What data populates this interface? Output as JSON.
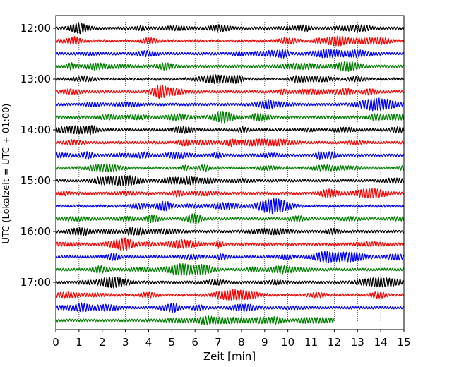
{
  "chart_data": {
    "type": "line",
    "xlabel": "Zeit  [min]",
    "ylabel": "UTC (Lokalzeit = UTC + 01:00)",
    "xlim": [
      0,
      15
    ],
    "x_ticks": [
      "0",
      "1",
      "2",
      "3",
      "4",
      "5",
      "6",
      "7",
      "8",
      "9",
      "10",
      "11",
      "12",
      "13",
      "14",
      "15"
    ],
    "y_ticks": [
      "12:00",
      "13:00",
      "14:00",
      "15:00",
      "16:00",
      "17:00"
    ],
    "grid": "vertical dotted",
    "trace_colors": [
      "#000000",
      "#ff0000",
      "#0000ff",
      "#008000"
    ],
    "traces": [
      {
        "start": "12:00",
        "end_min": 15,
        "color": "#000000"
      },
      {
        "start": "12:15",
        "end_min": 15,
        "color": "#ff0000"
      },
      {
        "start": "12:30",
        "end_min": 15,
        "color": "#0000ff"
      },
      {
        "start": "12:45",
        "end_min": 15,
        "color": "#008000"
      },
      {
        "start": "13:00",
        "end_min": 15,
        "color": "#000000"
      },
      {
        "start": "13:15",
        "end_min": 15,
        "color": "#ff0000"
      },
      {
        "start": "13:30",
        "end_min": 15,
        "color": "#0000ff"
      },
      {
        "start": "13:45",
        "end_min": 15,
        "color": "#008000"
      },
      {
        "start": "14:00",
        "end_min": 15,
        "color": "#000000"
      },
      {
        "start": "14:15",
        "end_min": 15,
        "color": "#ff0000"
      },
      {
        "start": "14:30",
        "end_min": 15,
        "color": "#0000ff"
      },
      {
        "start": "14:45",
        "end_min": 15,
        "color": "#008000"
      },
      {
        "start": "15:00",
        "end_min": 15,
        "color": "#000000"
      },
      {
        "start": "15:15",
        "end_min": 15,
        "color": "#ff0000"
      },
      {
        "start": "15:30",
        "end_min": 15,
        "color": "#0000ff"
      },
      {
        "start": "15:45",
        "end_min": 15,
        "color": "#008000"
      },
      {
        "start": "16:00",
        "end_min": 15,
        "color": "#000000"
      },
      {
        "start": "16:15",
        "end_min": 15,
        "color": "#ff0000"
      },
      {
        "start": "16:30",
        "end_min": 15,
        "color": "#0000ff"
      },
      {
        "start": "16:45",
        "end_min": 15,
        "color": "#008000"
      },
      {
        "start": "17:00",
        "end_min": 15,
        "color": "#000000"
      },
      {
        "start": "17:15",
        "end_min": 15,
        "color": "#ff0000"
      },
      {
        "start": "17:30",
        "end_min": 15,
        "color": "#0000ff"
      },
      {
        "start": "17:45",
        "end_min": 12,
        "color": "#008000"
      }
    ]
  }
}
